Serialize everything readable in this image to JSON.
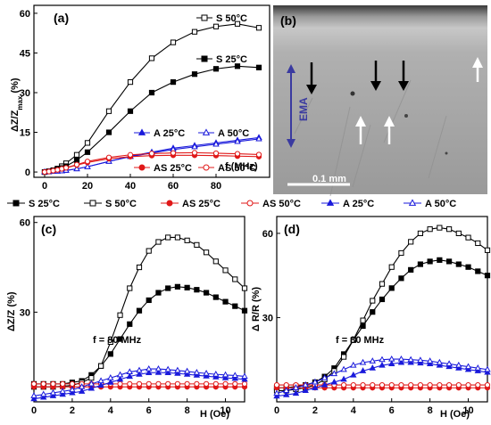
{
  "chart_data": [
    {
      "panel": "(a)",
      "type": "line",
      "ylabel": "ΔZ/Z_max (%)",
      "xlabel": "f (MHz)",
      "xlim": [
        -5,
        105
      ],
      "ylim": [
        -2,
        63
      ],
      "xticks": [
        0,
        20,
        40,
        60,
        80
      ],
      "yticks": [
        0,
        15,
        30,
        45,
        60
      ],
      "x": [
        0,
        2,
        4,
        6,
        8,
        10,
        15,
        20,
        30,
        40,
        50,
        60,
        70,
        80,
        90,
        100
      ],
      "series": [
        {
          "name": "S 50°C",
          "color": "#000000",
          "marker": "square-open",
          "values": [
            0,
            0.3,
            0.7,
            1.3,
            2.2,
            3.3,
            6.5,
            11,
            23,
            34,
            43,
            49,
            53,
            55,
            56,
            54.5
          ]
        },
        {
          "name": "S 25°C",
          "color": "#000000",
          "marker": "square-filled",
          "values": [
            0,
            0.2,
            0.5,
            1,
            1.5,
            2.2,
            4.5,
            7.5,
            15,
            23,
            30,
            34,
            37,
            39,
            40,
            39.5
          ]
        },
        {
          "name": "A 25°C",
          "color": "#1a1adb",
          "marker": "triangle-filled",
          "values": [
            0,
            0.1,
            0.2,
            0.3,
            0.4,
            0.6,
            1.2,
            2,
            4,
            6,
            7.5,
            9,
            10,
            11,
            12,
            13
          ]
        },
        {
          "name": "A 50°C",
          "color": "#1a1adb",
          "marker": "triangle-open",
          "values": [
            0,
            0.1,
            0.2,
            0.3,
            0.4,
            0.6,
            1.2,
            2,
            4,
            5.8,
            7.2,
            8.5,
            9.5,
            10.5,
            11.5,
            12.5
          ]
        },
        {
          "name": "AS 25°C",
          "color": "#e01818",
          "marker": "circle-filled",
          "values": [
            0,
            0.2,
            0.5,
            0.8,
            1.2,
            1.6,
            2.6,
            3.6,
            5,
            5.8,
            6.2,
            6.3,
            6.3,
            6.2,
            6,
            5.8
          ]
        },
        {
          "name": "AS 50°C",
          "color": "#e01818",
          "marker": "circle-open",
          "values": [
            0,
            0.2,
            0.5,
            0.8,
            1.2,
            1.6,
            2.8,
            4,
            5.5,
            6.5,
            7,
            7.2,
            7.3,
            7.1,
            6.9,
            6.6
          ]
        }
      ]
    },
    {
      "panel": "(c)",
      "type": "line",
      "ylabel": "ΔZ/Z (%)",
      "xlabel": "H (Oe)",
      "annotation": "f = 80 MHz",
      "xlim": [
        0,
        11
      ],
      "ylim": [
        0,
        62
      ],
      "xticks": [
        0,
        2,
        4,
        6,
        8,
        10
      ],
      "yticks": [
        30,
        60
      ],
      "x": [
        0,
        0.5,
        1,
        1.5,
        2,
        2.5,
        3,
        3.5,
        4,
        4.5,
        5,
        5.5,
        6,
        6.5,
        7,
        7.5,
        8,
        8.5,
        9,
        9.5,
        10,
        10.5,
        11
      ],
      "series": [
        {
          "name": "S 25°C",
          "color": "#000000",
          "marker": "square-filled",
          "values": [
            6,
            6,
            6,
            6,
            6.5,
            7,
            9,
            12,
            16,
            21,
            26,
            30.5,
            34,
            36.5,
            38,
            38.5,
            38.2,
            37.5,
            36.5,
            35,
            33.5,
            32,
            30.5
          ]
        },
        {
          "name": "S 50°C",
          "color": "#000000",
          "marker": "square-open",
          "values": [
            5,
            5,
            5,
            5.2,
            5.5,
            6.5,
            8,
            12,
            20,
            29,
            38,
            45,
            50.5,
            53.5,
            55,
            55,
            54,
            52.5,
            50,
            47,
            44,
            41,
            38
          ]
        },
        {
          "name": "AS 25°C",
          "color": "#e01818",
          "marker": "circle-filled",
          "values": [
            5,
            5,
            5,
            5,
            5,
            5,
            5,
            5,
            5,
            5,
            5,
            5,
            5,
            5,
            5,
            5,
            5,
            5,
            5,
            5,
            5,
            5,
            5
          ]
        },
        {
          "name": "AS 50°C",
          "color": "#e01818",
          "marker": "circle-open",
          "values": [
            6,
            6,
            6,
            6,
            6,
            6,
            6,
            6,
            6,
            6,
            6,
            6,
            6,
            6,
            6,
            6,
            6,
            6,
            6,
            6,
            6,
            6,
            6
          ]
        },
        {
          "name": "A 25°C",
          "color": "#1a1adb",
          "marker": "triangle-filled",
          "values": [
            1,
            1.5,
            2,
            2.5,
            3,
            3.5,
            4.5,
            5.5,
            6.5,
            7.5,
            8.5,
            9.2,
            9.7,
            9.8,
            9.7,
            9.5,
            9.2,
            8.9,
            8.6,
            8.3,
            8,
            7.8,
            7.5
          ]
        },
        {
          "name": "A 50°C",
          "color": "#1a1adb",
          "marker": "triangle-open",
          "values": [
            2,
            2.5,
            3,
            3.5,
            4,
            5,
            6,
            7,
            8,
            9,
            10,
            10.5,
            11,
            11,
            10.8,
            10.5,
            10.2,
            9.8,
            9.5,
            9.2,
            9,
            8.8,
            8.5
          ]
        }
      ]
    },
    {
      "panel": "(d)",
      "type": "line",
      "ylabel": "Δ R/R (%)",
      "xlabel": "H (Oe)",
      "annotation": "f = 80 MHz",
      "xlim": [
        0,
        11
      ],
      "ylim": [
        0,
        66
      ],
      "xticks": [
        0,
        2,
        4,
        6,
        8,
        10
      ],
      "yticks": [
        30,
        60
      ],
      "x": [
        0,
        0.5,
        1,
        1.5,
        2,
        2.5,
        3,
        3.5,
        4,
        4.5,
        5,
        5.5,
        6,
        6.5,
        7,
        7.5,
        8,
        8.5,
        9,
        9.5,
        10,
        10.5,
        11
      ],
      "series": [
        {
          "name": "S 25°C",
          "color": "#000000",
          "marker": "square-filled",
          "values": [
            5,
            5,
            5.5,
            6,
            7,
            9,
            12,
            17,
            22,
            27,
            32,
            36.5,
            40.5,
            44,
            47,
            49,
            50,
            50.5,
            50,
            49,
            48,
            46.5,
            45
          ]
        },
        {
          "name": "S 50°C",
          "color": "#000000",
          "marker": "square-open",
          "values": [
            4,
            4,
            4.5,
            5,
            6,
            8,
            11,
            16,
            22,
            29,
            36,
            42,
            48,
            53,
            57,
            60,
            61.5,
            62,
            61.5,
            60,
            58.5,
            56.5,
            54
          ]
        },
        {
          "name": "AS 25°C",
          "color": "#e01818",
          "marker": "circle-filled",
          "values": [
            5,
            5,
            5,
            5,
            5,
            5,
            5,
            5,
            5,
            5,
            5,
            5,
            5,
            5,
            5,
            5,
            5,
            5,
            5,
            5,
            5,
            5,
            5
          ]
        },
        {
          "name": "AS 50°C",
          "color": "#e01818",
          "marker": "circle-open",
          "values": [
            6,
            6,
            6,
            6,
            6,
            6,
            6,
            6,
            6,
            6,
            6,
            6,
            6,
            6,
            6,
            6,
            6,
            6,
            6,
            6,
            6,
            6,
            6
          ]
        },
        {
          "name": "A 25°C",
          "color": "#1a1adb",
          "marker": "triangle-filled",
          "values": [
            2,
            2.5,
            3,
            4,
            5,
            6,
            7,
            8,
            9.5,
            11,
            12,
            13,
            13.5,
            14,
            14,
            13.8,
            13.5,
            13,
            12.5,
            12,
            11.5,
            11,
            10.5
          ]
        },
        {
          "name": "A 50°C",
          "color": "#1a1adb",
          "marker": "triangle-open",
          "values": [
            3,
            4,
            5,
            6,
            7,
            8.5,
            10,
            11.5,
            13,
            14,
            14.5,
            15,
            15.2,
            15.2,
            15,
            14.8,
            14.5,
            14,
            13.5,
            13,
            12.5,
            12,
            11.5
          ]
        }
      ]
    }
  ],
  "legend_row": [
    {
      "name": "S 25°C",
      "marker": "square-filled",
      "color": "#000000"
    },
    {
      "name": "S 50°C",
      "marker": "square-open",
      "color": "#000000"
    },
    {
      "name": "AS 25°C",
      "marker": "circle-filled",
      "color": "#e01818"
    },
    {
      "name": "AS 50°C",
      "marker": "circle-open",
      "color": "#e01818"
    },
    {
      "name": "A 25°C",
      "marker": "triangle-filled",
      "color": "#1a1adb"
    },
    {
      "name": "A 50°C",
      "marker": "triangle-open",
      "color": "#1a1adb"
    }
  ],
  "micrograph": {
    "panel": "(b)",
    "side_label": "EMA",
    "scale_bar": "0.1 mm",
    "arrow_color": "#3a3aa0"
  }
}
